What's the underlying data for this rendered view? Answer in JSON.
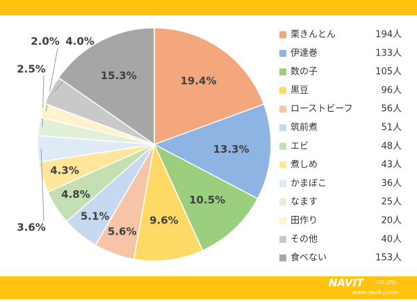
{
  "chart_data": {
    "type": "pie",
    "categories": [
      "栗きんとん",
      "伊達巻",
      "数の子",
      "黒豆",
      "ローストビーフ",
      "筑前煮",
      "エビ",
      "煮しめ",
      "かまぼこ",
      "なます",
      "田作り",
      "その他",
      "食べない"
    ],
    "values": [
      19.4,
      13.3,
      10.5,
      9.6,
      5.6,
      5.1,
      4.8,
      4.3,
      3.6,
      2.5,
      2.0,
      4.0,
      15.3
    ],
    "value_labels": [
      "19.4%",
      "13.3%",
      "10.5%",
      "9.6%",
      "5.6%",
      "5.1%",
      "4.8%",
      "4.3%",
      "3.6%",
      "2.5%",
      "2.0%",
      "4.0%",
      "15.3%"
    ],
    "count_labels": [
      "194人",
      "133人",
      "105人",
      "96人",
      "56人",
      "51人",
      "48人",
      "43人",
      "36人",
      "25人",
      "20人",
      "40人",
      "153人"
    ],
    "colors": [
      "#f4a77d",
      "#8db4e2",
      "#9bcf7d",
      "#ffd966",
      "#f8c4a8",
      "#c6d9f1",
      "#c4e0b2",
      "#ffe699",
      "#deebf7",
      "#e2efd9",
      "#fff2cc",
      "#c9c9c9",
      "#a6a6a6"
    ],
    "legend": "right"
  },
  "footer": {
    "logo": "NAVIT",
    "company": "CO.,LTD.",
    "url": "www.navit-j.com"
  }
}
